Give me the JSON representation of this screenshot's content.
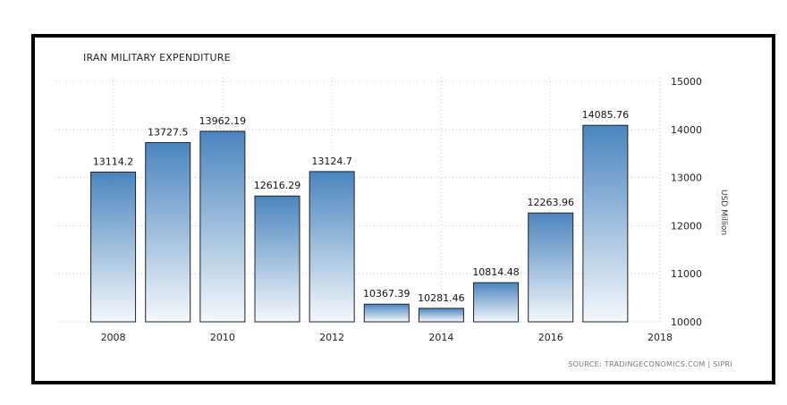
{
  "chart_data": {
    "type": "bar",
    "title": "IRAN MILITARY EXPENDITURE",
    "ylabel": "USD Million",
    "source": "SOURCE: TRADINGECONOMICS.COM | SIPRI",
    "x": [
      2008,
      2009,
      2010,
      2011,
      2012,
      2013,
      2014,
      2015,
      2016,
      2017
    ],
    "values": [
      13114.2,
      13727.5,
      13962.19,
      12616.29,
      13124.7,
      10367.39,
      10281.46,
      10814.48,
      12263.96,
      14085.76
    ],
    "value_labels": [
      "13114.2",
      "13727.5",
      "13962.19",
      "12616.29",
      "13124.7",
      "10367.39",
      "10281.46",
      "10814.48",
      "12263.96",
      "14085.76"
    ],
    "x_ticks": [
      "2008",
      "2010",
      "2012",
      "2014",
      "2016",
      "2018"
    ],
    "y_ticks": [
      "10000",
      "11000",
      "12000",
      "13000",
      "14000",
      "15000"
    ],
    "xlim": [
      2007.5,
      2018
    ],
    "ylim": [
      10000,
      15000
    ],
    "bar_color_top": "#4a85bf",
    "bar_color_bottom": "#f4f8fc",
    "grid": true
  }
}
